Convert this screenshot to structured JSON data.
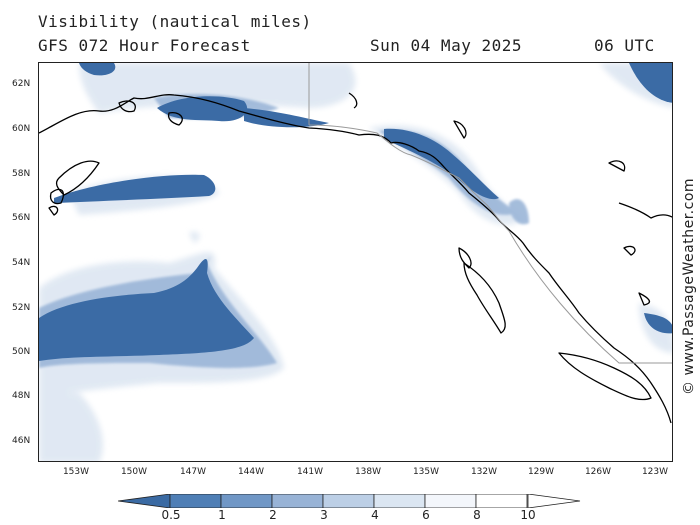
{
  "header": {
    "title": "Visibility (nautical miles)",
    "subtitle": "GFS 072 Hour Forecast",
    "date": "Sun 04 May 2025",
    "time": "06 UTC"
  },
  "credit": "© www.PassageWeather.com",
  "axes": {
    "lat_labels": [
      "62N",
      "60N",
      "58N",
      "56N",
      "54N",
      "52N",
      "50N",
      "48N",
      "46N"
    ],
    "lon_labels": [
      "153W",
      "150W",
      "147W",
      "144W",
      "141W",
      "138W",
      "135W",
      "132W",
      "129W",
      "126W",
      "123W"
    ]
  },
  "legend": {
    "labels": [
      "0.5",
      "1",
      "2",
      "3",
      "4",
      "6",
      "8",
      "10"
    ],
    "colors": [
      "#3a6aa3",
      "#4f7fb6",
      "#7097c6",
      "#98b3d6",
      "#bccfe6",
      "#dbe6f2",
      "#f3f6fb",
      "#ffffff"
    ]
  },
  "map_colors": {
    "low_vis": "#3b6ba5",
    "mid_vis": "#9bb6d8",
    "light_vis": "#dbe5f1",
    "coast": "#000000",
    "border": "#9a9a9a"
  }
}
